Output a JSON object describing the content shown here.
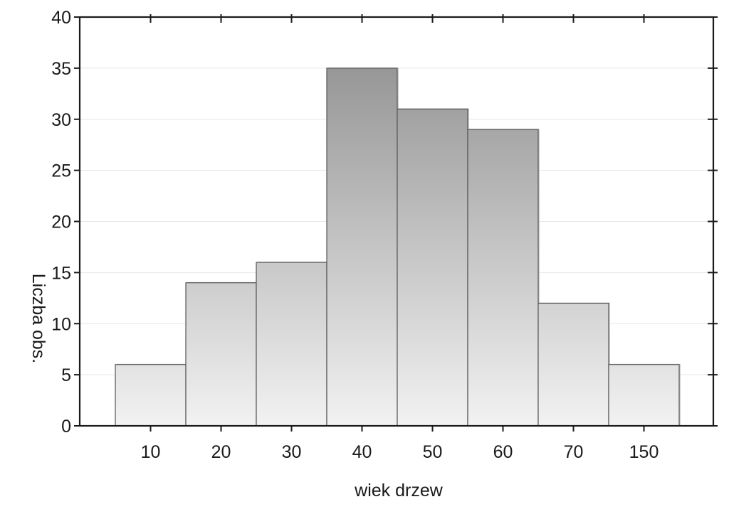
{
  "chart_data": {
    "type": "bar",
    "title": "",
    "xlabel": "wiek drzew",
    "ylabel": "Liczba obs.",
    "categories": [
      "10",
      "20",
      "30",
      "40",
      "50",
      "60",
      "70",
      "150"
    ],
    "values": [
      6,
      14,
      16,
      35,
      31,
      29,
      12,
      6
    ],
    "ylim": [
      0,
      40
    ],
    "yticks": [
      0,
      5,
      10,
      15,
      20,
      25,
      30,
      35,
      40
    ],
    "grid": true,
    "legend": "none",
    "colors": {
      "bar_light": "#f2f2f2",
      "bar_dark": "#8a8a8a",
      "bar_edge": "#555555",
      "axis": "#1a1a1a",
      "grid": "#e6e6e6"
    }
  }
}
